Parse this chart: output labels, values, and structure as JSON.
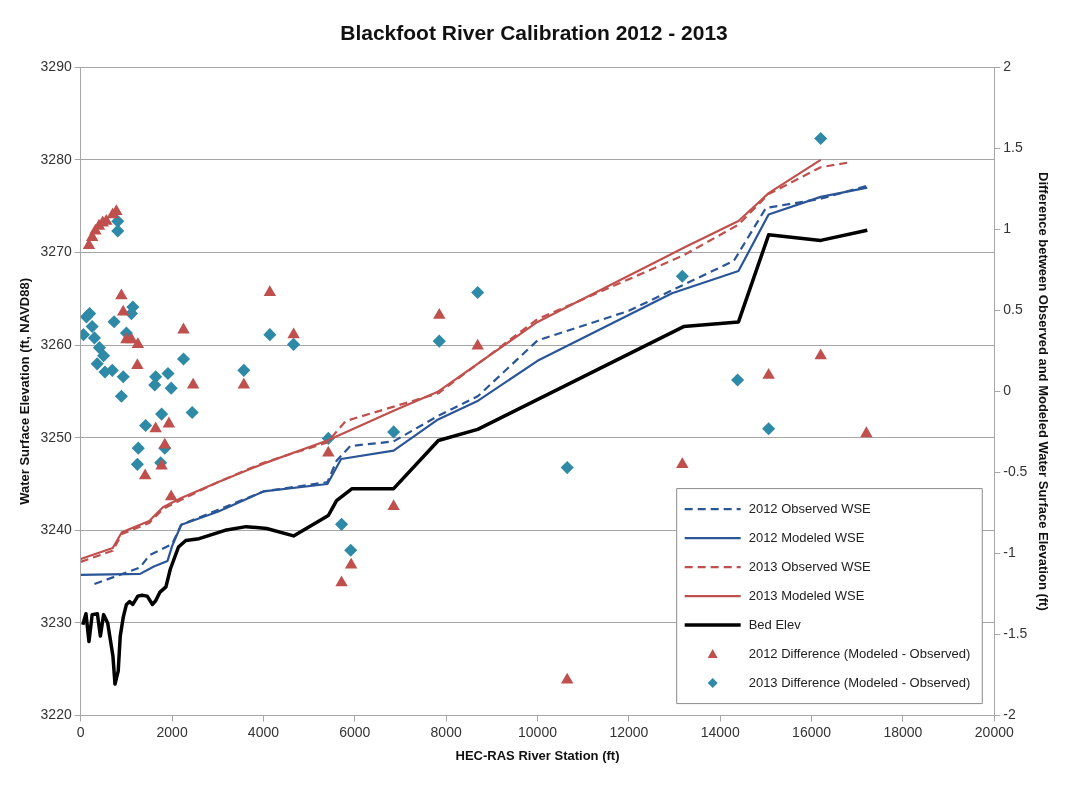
{
  "chart_data": {
    "type": "line",
    "title": "Blackfoot River Calibration 2012 - 2013",
    "xlabel": "HEC-RAS River Station (ft)",
    "ylabel": "Water Surface Elevation (ft, NAVD88)",
    "y2label": "Difference between Observed and Modeled Water Surface Elevation (ft)",
    "xlim": [
      0,
      20000
    ],
    "xticks": [
      0,
      2000,
      4000,
      6000,
      8000,
      10000,
      12000,
      14000,
      16000,
      18000,
      20000
    ],
    "ylim": [
      3220,
      3290
    ],
    "yticks": [
      3220,
      3230,
      3240,
      3250,
      3260,
      3270,
      3280,
      3290
    ],
    "y2lim": [
      -2,
      2
    ],
    "y2ticks": [
      -2,
      -1.5,
      -1,
      -0.5,
      0,
      0.5,
      1,
      1.5,
      2
    ],
    "grid": "y",
    "legend": "bottom right",
    "series": [
      {
        "name": "2012 Observed WSE",
        "line_style": "dashed",
        "marker": "none",
        "color": "#2a5597",
        "x": [
          300,
          1300,
          1500,
          2000,
          2200,
          3000,
          4000,
          5400,
          5600,
          5900,
          6850,
          7800,
          8700,
          10000,
          12000,
          14300,
          15000,
          16200,
          17220
        ],
        "values": [
          3234.2,
          3236,
          3237.3,
          3238.5,
          3240.6,
          3242.2,
          3244.2,
          3245.2,
          3247.5,
          3249.1,
          3249.6,
          3252.3,
          3254.5,
          3260.5,
          3263.7,
          3269.1,
          3274.8,
          3275.8,
          3277.2
        ]
      },
      {
        "name": "2012 Modeled WSE",
        "line_style": "solid",
        "marker": "none",
        "color": "#2a5597",
        "x": [
          0,
          1300,
          1600,
          1900,
          2000,
          2200,
          3000,
          4000,
          5400,
          5700,
          6850,
          7800,
          8700,
          10000,
          12945,
          14400,
          15060,
          16200,
          17220
        ],
        "values": [
          3235.2,
          3235.3,
          3236.1,
          3236.7,
          3238.3,
          3240.6,
          3242,
          3244.2,
          3245,
          3247.7,
          3248.6,
          3251.9,
          3254,
          3258.3,
          3265.6,
          3268,
          3274.1,
          3276,
          3277
        ]
      },
      {
        "name": "2013 Observed WSE",
        "line_style": "dashed",
        "marker": "none",
        "color": "#c0504d",
        "x": [
          0,
          700,
          900,
          1500,
          1800,
          2200,
          3000,
          4000,
          5400,
          5800,
          7830,
          10000,
          13200,
          14400,
          15060,
          16200,
          16800
        ],
        "values": [
          3236.6,
          3237.8,
          3239.6,
          3240.8,
          3242.3,
          3243.3,
          3245.2,
          3247.3,
          3249.5,
          3251.8,
          3254.8,
          3262.8,
          3269.7,
          3273,
          3276.3,
          3279.2,
          3279.7
        ]
      },
      {
        "name": "2013 Modeled WSE",
        "line_style": "solid",
        "marker": "none",
        "color": "#c0504d",
        "x": [
          0,
          700,
          900,
          1500,
          1800,
          2200,
          3000,
          4000,
          5400,
          6850,
          7830,
          10000,
          13200,
          14400,
          15060,
          16200
        ],
        "values": [
          3236.9,
          3238.1,
          3239.8,
          3241,
          3242.5,
          3243.5,
          3245.2,
          3247.2,
          3249.7,
          3252.9,
          3255,
          3262.5,
          3270.5,
          3273.4,
          3276.4,
          3280
        ]
      },
      {
        "name": "Bed Elev",
        "line_style": "solid",
        "marker": "none",
        "color": "#000000",
        "x": [
          45,
          114,
          180,
          250,
          364,
          430,
          500,
          590,
          705,
          750,
          820,
          865,
          930,
          1000,
          1070,
          1140,
          1250,
          1340,
          1455,
          1570,
          1640,
          1730,
          1865,
          1960,
          2140,
          2300,
          2590,
          3160,
          3620,
          4070,
          4660,
          5420,
          5600,
          5940,
          6850,
          7830,
          8690,
          13200,
          14400,
          15060,
          16200,
          17220
        ],
        "values": [
          3229.8,
          3231,
          3228,
          3230.9,
          3231,
          3228.6,
          3230.9,
          3230,
          3226.4,
          3223.4,
          3224.8,
          3228.6,
          3230.6,
          3232,
          3232.3,
          3232,
          3232.9,
          3233,
          3232.9,
          3232,
          3232.4,
          3233.3,
          3233.9,
          3235.8,
          3238.2,
          3238.9,
          3239.1,
          3240,
          3240.4,
          3240.2,
          3239.4,
          3241.6,
          3243.2,
          3244.5,
          3244.5,
          3249.7,
          3250.9,
          3262,
          3262.5,
          3271.9,
          3271.3,
          3272.4
        ]
      },
      {
        "name": "2012 Difference (Modeled - Observed)",
        "type": "scatter",
        "axis": "y2",
        "marker": "triangle",
        "color": "#c0504d",
        "x": [
          180,
          250,
          320,
          400,
          480,
          560,
          700,
          780,
          890,
          930,
          1000,
          1110,
          1250,
          1240,
          2250,
          2460,
          3570,
          4140,
          1640,
          1930,
          1840,
          1770,
          1410,
          1980,
          4660,
          5420,
          5710,
          5920,
          6850,
          7850,
          8690,
          10650,
          13170,
          15060,
          16200,
          17200
        ],
        "values": [
          0.9,
          0.95,
          0.99,
          1.02,
          1.04,
          1.05,
          1.09,
          1.11,
          0.59,
          0.49,
          0.32,
          0.32,
          0.29,
          0.16,
          0.38,
          0.04,
          0.04,
          0.61,
          -0.23,
          -0.2,
          -0.33,
          -0.46,
          -0.52,
          -0.65,
          0.35,
          -0.38,
          -1.18,
          -1.07,
          -0.71,
          0.47,
          0.28,
          -1.78,
          -0.45,
          0.1,
          0.22,
          -0.26
        ]
      },
      {
        "name": "2013 Difference (Modeled - Observed)",
        "type": "scatter",
        "axis": "y2",
        "marker": "diamond",
        "color": "#2e8aa6",
        "x": [
          810,
          810,
          60,
          125,
          195,
          250,
          300,
          410,
          500,
          360,
          530,
          690,
          730,
          930,
          890,
          1000,
          1110,
          1140,
          1640,
          1620,
          1910,
          1980,
          2250,
          1770,
          1420,
          2440,
          1260,
          1840,
          1240,
          1750,
          3570,
          4140,
          4660,
          5420,
          5710,
          5910,
          6850,
          7850,
          8690,
          10650,
          13170,
          14380,
          15060,
          16200
        ],
        "values": [
          1.05,
          0.99,
          0.35,
          0.46,
          0.48,
          0.4,
          0.33,
          0.27,
          0.22,
          0.17,
          0.12,
          0.13,
          0.43,
          0.09,
          -0.03,
          0.36,
          0.48,
          0.52,
          0.09,
          0.04,
          0.11,
          0.02,
          0.2,
          -0.14,
          -0.21,
          -0.13,
          -0.35,
          -0.35,
          -0.45,
          -0.44,
          0.13,
          0.35,
          0.29,
          -0.29,
          -0.82,
          -0.98,
          -0.25,
          0.31,
          0.61,
          -0.47,
          0.71,
          0.07,
          -0.23,
          1.56
        ]
      }
    ]
  }
}
